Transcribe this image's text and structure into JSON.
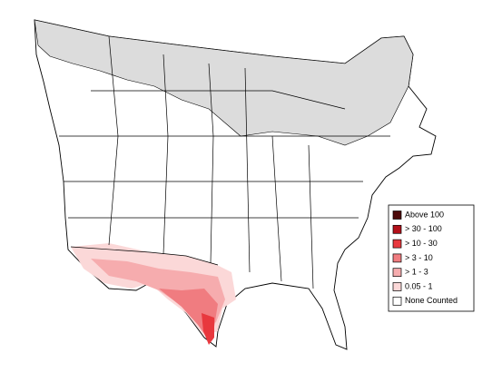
{
  "legend": {
    "items": [
      {
        "label": "Above 100",
        "color": "#4d0a0a"
      },
      {
        "label": "> 30 - 100",
        "color": "#b3101a"
      },
      {
        "label": "> 10 - 30",
        "color": "#e8383e"
      },
      {
        "label": "> 3 - 10",
        "color": "#f07c80"
      },
      {
        "label": "> 1 - 3",
        "color": "#f6acae"
      },
      {
        "label": "0.05 - 1",
        "color": "#fbd8d8"
      },
      {
        "label": "None Counted",
        "color": "#ffffff"
      }
    ]
  }
}
